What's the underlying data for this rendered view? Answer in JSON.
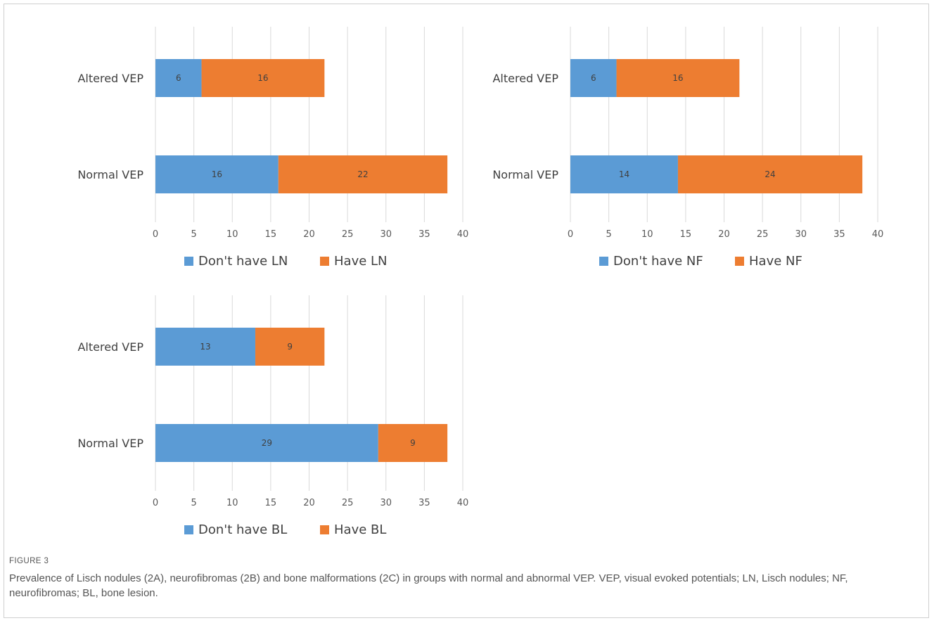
{
  "figure": {
    "label": "FIGURE 3",
    "caption": "Prevalence of Lisch nodules (2A), neurofibromas (2B) and bone malformations (2C) in groups with normal and abnormal VEP. VEP, visual evoked potentials; LN, Lisch nodules; NF, neurofibromas; BL, bone lesion."
  },
  "colors": {
    "series1": "#5b9bd5",
    "series2": "#ed7d31",
    "grid": "#d9d9d9"
  },
  "chart_data": [
    {
      "type": "bar",
      "orientation": "horizontal",
      "stacked": true,
      "categories": [
        "Altered VEP",
        "Normal VEP"
      ],
      "series": [
        {
          "name": "Don't have LN",
          "values": [
            6,
            16
          ]
        },
        {
          "name": "Have LN",
          "values": [
            16,
            22
          ]
        }
      ],
      "xlim": [
        0,
        40
      ],
      "xticks": [
        0,
        5,
        10,
        15,
        20,
        25,
        30,
        35,
        40
      ],
      "grid": true,
      "legend": "bottom"
    },
    {
      "type": "bar",
      "orientation": "horizontal",
      "stacked": true,
      "categories": [
        "Altered VEP",
        "Normal VEP"
      ],
      "series": [
        {
          "name": "Don't have NF",
          "values": [
            6,
            14
          ]
        },
        {
          "name": "Have NF",
          "values": [
            16,
            24
          ]
        }
      ],
      "xlim": [
        0,
        40
      ],
      "xticks": [
        0,
        5,
        10,
        15,
        20,
        25,
        30,
        35,
        40
      ],
      "grid": true,
      "legend": "bottom"
    },
    {
      "type": "bar",
      "orientation": "horizontal",
      "stacked": true,
      "categories": [
        "Altered VEP",
        "Normal VEP"
      ],
      "series": [
        {
          "name": "Don't have BL",
          "values": [
            13,
            29
          ]
        },
        {
          "name": "Have BL",
          "values": [
            9,
            9
          ]
        }
      ],
      "xlim": [
        0,
        40
      ],
      "xticks": [
        0,
        5,
        10,
        15,
        20,
        25,
        30,
        35,
        40
      ],
      "grid": true,
      "legend": "bottom"
    }
  ]
}
